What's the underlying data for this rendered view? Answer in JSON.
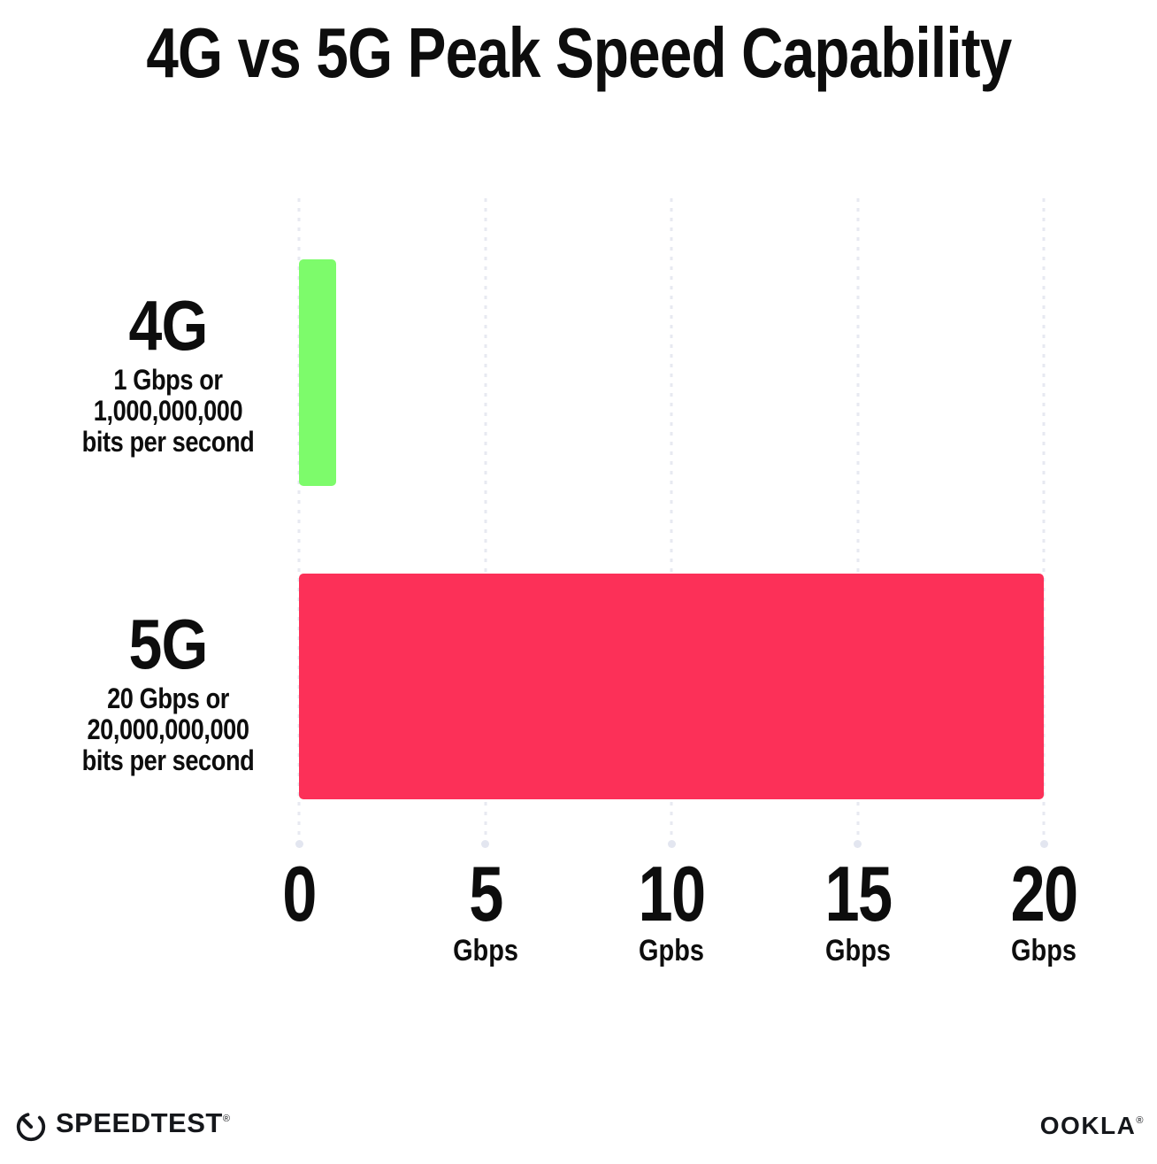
{
  "title": "4G vs 5G Peak Speed Capability",
  "chart_data": {
    "type": "bar",
    "orientation": "horizontal",
    "title": "4G vs 5G Peak Speed Capability",
    "categories": [
      "4G",
      "5G"
    ],
    "values": [
      1,
      20
    ],
    "value_unit": "Gbps",
    "xlim": [
      0,
      20
    ],
    "grid": "vertical dotted gridlines at 0, 5, 10, 15, 20 with end dots at baseline",
    "legend_position": "none",
    "bars": [
      {
        "label": "4G",
        "value_gbps": 1,
        "color": "#7DFB6B",
        "sub_lines": [
          "1 Gbps or",
          "1,000,000,000",
          "bits per second"
        ]
      },
      {
        "label": "5G",
        "value_gbps": 20,
        "color": "#FC3058",
        "sub_lines": [
          "20 Gbps or",
          "20,000,000,000",
          "bits per second"
        ]
      }
    ],
    "x_ticks": [
      {
        "value": 0,
        "label": "0",
        "unit": ""
      },
      {
        "value": 5,
        "label": "5",
        "unit": "Gbps"
      },
      {
        "value": 10,
        "label": "10",
        "unit": "Gpbs"
      },
      {
        "value": 15,
        "label": "15",
        "unit": "Gbps"
      },
      {
        "value": 20,
        "label": "20",
        "unit": "Gbps"
      }
    ]
  },
  "footer": {
    "speedtest_label": "SPEEDTEST",
    "speedtest_trademark": "®",
    "speedtest_icon": "speedometer-gauge-icon",
    "ookla_label": "OOKLA",
    "ookla_trademark": "®"
  },
  "colors": {
    "bar_4g": "#7DFB6B",
    "bar_5g": "#FC3058",
    "gridline": "#E7E9F1",
    "text": "#0D0D0D",
    "background": "#FFFFFF"
  }
}
